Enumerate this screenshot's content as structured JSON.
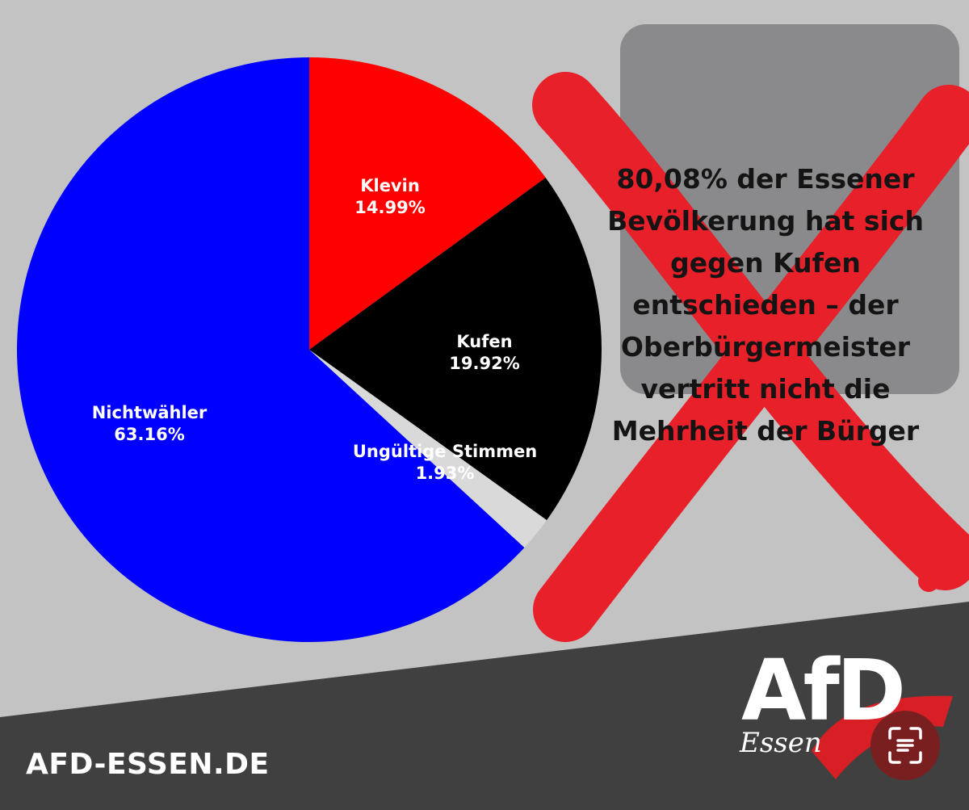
{
  "chart_data": {
    "type": "pie",
    "title": "",
    "slices": [
      {
        "label": "Klevin",
        "value": 14.99,
        "display": "14.99%",
        "color": "#ff0000"
      },
      {
        "label": "Kufen",
        "value": 19.92,
        "display": "19.92%",
        "color": "#000000"
      },
      {
        "label": "Ungültige Stimmen",
        "value": 1.93,
        "display": "1.93%",
        "color": "#d9d9d9"
      },
      {
        "label": "Nichtwähler",
        "value": 63.16,
        "display": "63.16%",
        "color": "#0000ff"
      }
    ]
  },
  "message": {
    "lines": [
      "80,08% der Essener",
      "Bevölkerung hat sich",
      "gegen Kufen",
      "entschieden – der",
      "Oberbürgermeister",
      "vertritt nicht die",
      "Mehrheit der Bürger"
    ]
  },
  "footer": {
    "website": "AFD-ESSEN.DE",
    "logo_text": "AfD",
    "logo_sub": "Essen"
  },
  "colors": {
    "background": "#c3c3c3",
    "footer_band": "#404040",
    "cross": "#e8202a",
    "card": "#8a8a8c"
  },
  "icons": {
    "cross": "red-x-mark-icon",
    "lens": "scan-text-icon"
  }
}
